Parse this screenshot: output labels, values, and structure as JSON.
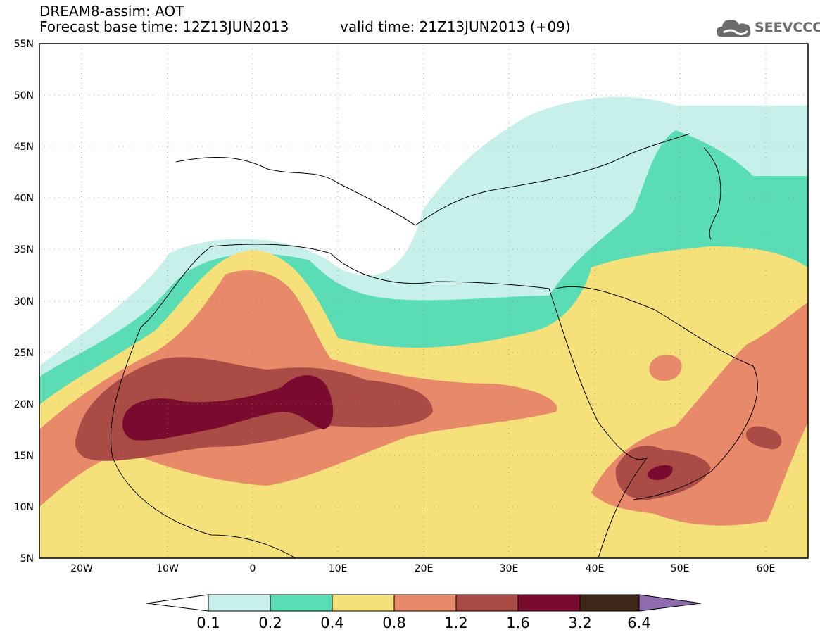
{
  "header": {
    "title": "DREAM8-assim: AOT",
    "base_time": "Forecast base time: 12Z13JUN2013",
    "valid_time": "valid time: 21Z13JUN2013 (+09)"
  },
  "logo": {
    "text": "SEEVCCC",
    "icon": "cloud-icon"
  },
  "axes": {
    "lat_labels": [
      "55N",
      "50N",
      "45N",
      "40N",
      "35N",
      "30N",
      "25N",
      "20N",
      "15N",
      "10N",
      "5N"
    ],
    "lon_labels": [
      "20W",
      "10W",
      "0",
      "10E",
      "20E",
      "30E",
      "40E",
      "50E",
      "60E"
    ],
    "lat_range": [
      5,
      55
    ],
    "lon_range": [
      -25,
      65
    ],
    "grid": "dotted"
  },
  "colorbar": {
    "levels": [
      "0.1",
      "0.2",
      "0.4",
      "0.8",
      "1.2",
      "1.6",
      "3.2",
      "6.4"
    ],
    "colors": [
      "#ffffff",
      "#c8f0ea",
      "#5adcb4",
      "#f5e07a",
      "#e8896a",
      "#ab4b46",
      "#7a0a2e",
      "#3e2618",
      "#8f6cb0"
    ]
  },
  "field": {
    "variable": "AOT",
    "colors": {
      "c1": "#c8f0ea",
      "c2": "#5adcb4",
      "c3": "#f5e07a",
      "c4": "#e8896a",
      "c5": "#ab4b46",
      "c6": "#7a0a2e"
    }
  }
}
